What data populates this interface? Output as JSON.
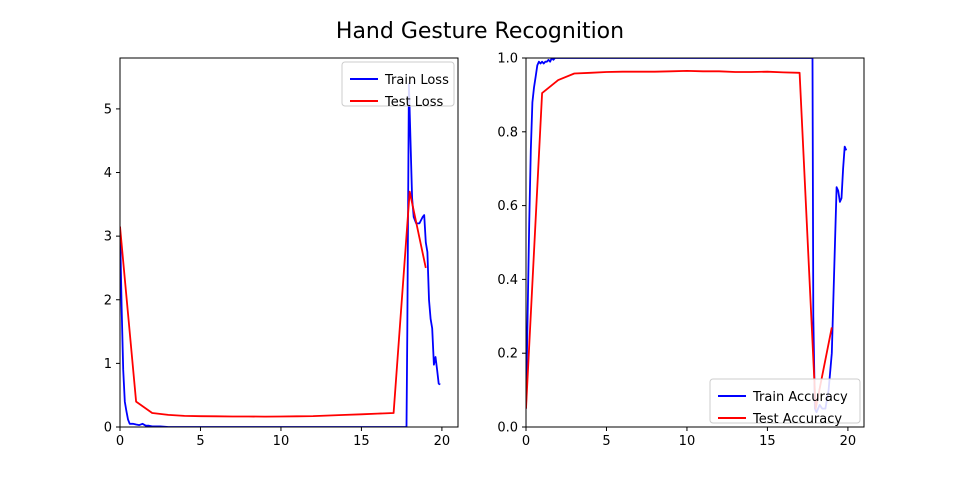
{
  "figure": {
    "title": "Hand Gesture Recognition"
  },
  "chart_data": [
    {
      "type": "line",
      "title": "",
      "xlabel": "",
      "ylabel": "",
      "xlim": [
        0,
        21
      ],
      "ylim": [
        0,
        5.8
      ],
      "xticks": [
        0,
        5,
        10,
        15,
        20
      ],
      "yticks": [
        0,
        1,
        2,
        3,
        4,
        5
      ],
      "legend_position": "top-right",
      "series": [
        {
          "name": "Train Loss",
          "color": "#0000ff",
          "x": [
            0,
            0.1,
            0.2,
            0.3,
            0.4,
            0.5,
            0.6,
            0.8,
            1.0,
            1.2,
            1.4,
            1.6,
            1.8,
            2.0,
            2.5,
            3,
            5,
            10,
            15,
            17.8,
            17.85,
            17.95,
            18.05,
            18.15,
            18.25,
            18.4,
            18.6,
            18.8,
            18.9,
            19.0,
            19.1,
            19.2,
            19.3,
            19.4,
            19.5,
            19.6,
            19.7,
            19.8,
            19.9
          ],
          "y": [
            3.15,
            1.9,
            0.9,
            0.4,
            0.25,
            0.12,
            0.05,
            0.05,
            0.04,
            0.03,
            0.05,
            0.02,
            0.02,
            0.01,
            0.01,
            0.0,
            0.0,
            0.0,
            0.0,
            0.0,
            1.5,
            5.4,
            4.5,
            3.6,
            3.3,
            3.2,
            3.2,
            3.3,
            3.33,
            2.9,
            2.75,
            2.0,
            1.7,
            1.55,
            0.98,
            1.1,
            0.9,
            0.68,
            0.67
          ]
        },
        {
          "name": "Test Loss",
          "color": "#ff0000",
          "x": [
            0,
            1,
            2,
            3,
            4,
            5,
            6,
            7,
            8,
            9,
            10,
            11,
            12,
            13,
            14,
            15,
            16,
            17,
            18,
            19
          ],
          "y": [
            3.15,
            0.4,
            0.22,
            0.19,
            0.175,
            0.17,
            0.168,
            0.165,
            0.165,
            0.163,
            0.165,
            0.168,
            0.172,
            0.18,
            0.19,
            0.2,
            0.21,
            0.22,
            3.7,
            2.5
          ]
        }
      ]
    },
    {
      "type": "line",
      "title": "",
      "xlabel": "",
      "ylabel": "",
      "xlim": [
        0,
        21
      ],
      "ylim": [
        0,
        1.0
      ],
      "xticks": [
        0,
        5,
        10,
        15,
        20
      ],
      "yticks": [
        0.0,
        0.2,
        0.4,
        0.6,
        0.8,
        1.0
      ],
      "legend_position": "bottom-right",
      "series": [
        {
          "name": "Train Accuracy",
          "color": "#0000ff",
          "x": [
            0,
            0.1,
            0.2,
            0.3,
            0.4,
            0.5,
            0.6,
            0.7,
            0.8,
            0.9,
            1.0,
            1.1,
            1.2,
            1.3,
            1.4,
            1.5,
            1.6,
            1.7,
            1.8,
            2.0,
            2.2,
            17.8,
            17.85,
            17.95,
            18.05,
            18.15,
            18.25,
            18.4,
            18.6,
            18.8,
            19.0,
            19.1,
            19.2,
            19.3,
            19.4,
            19.5,
            19.6,
            19.7,
            19.8,
            19.9
          ],
          "y": [
            0.05,
            0.3,
            0.55,
            0.75,
            0.88,
            0.92,
            0.95,
            0.98,
            0.99,
            0.985,
            0.99,
            0.985,
            0.99,
            0.99,
            0.995,
            0.99,
            1.0,
            0.995,
            1.0,
            1.0,
            1.0,
            1.0,
            0.3,
            0.05,
            0.04,
            0.05,
            0.06,
            0.05,
            0.05,
            0.1,
            0.2,
            0.35,
            0.5,
            0.65,
            0.64,
            0.61,
            0.62,
            0.7,
            0.76,
            0.75
          ]
        },
        {
          "name": "Test Accuracy",
          "color": "#ff0000",
          "x": [
            0,
            1,
            2,
            3,
            4,
            5,
            6,
            7,
            8,
            9,
            10,
            11,
            12,
            13,
            14,
            15,
            16,
            17,
            18,
            19
          ],
          "y": [
            0.05,
            0.905,
            0.94,
            0.958,
            0.96,
            0.962,
            0.963,
            0.963,
            0.963,
            0.964,
            0.965,
            0.964,
            0.964,
            0.962,
            0.962,
            0.963,
            0.961,
            0.96,
            0.05,
            0.27
          ]
        }
      ]
    }
  ]
}
